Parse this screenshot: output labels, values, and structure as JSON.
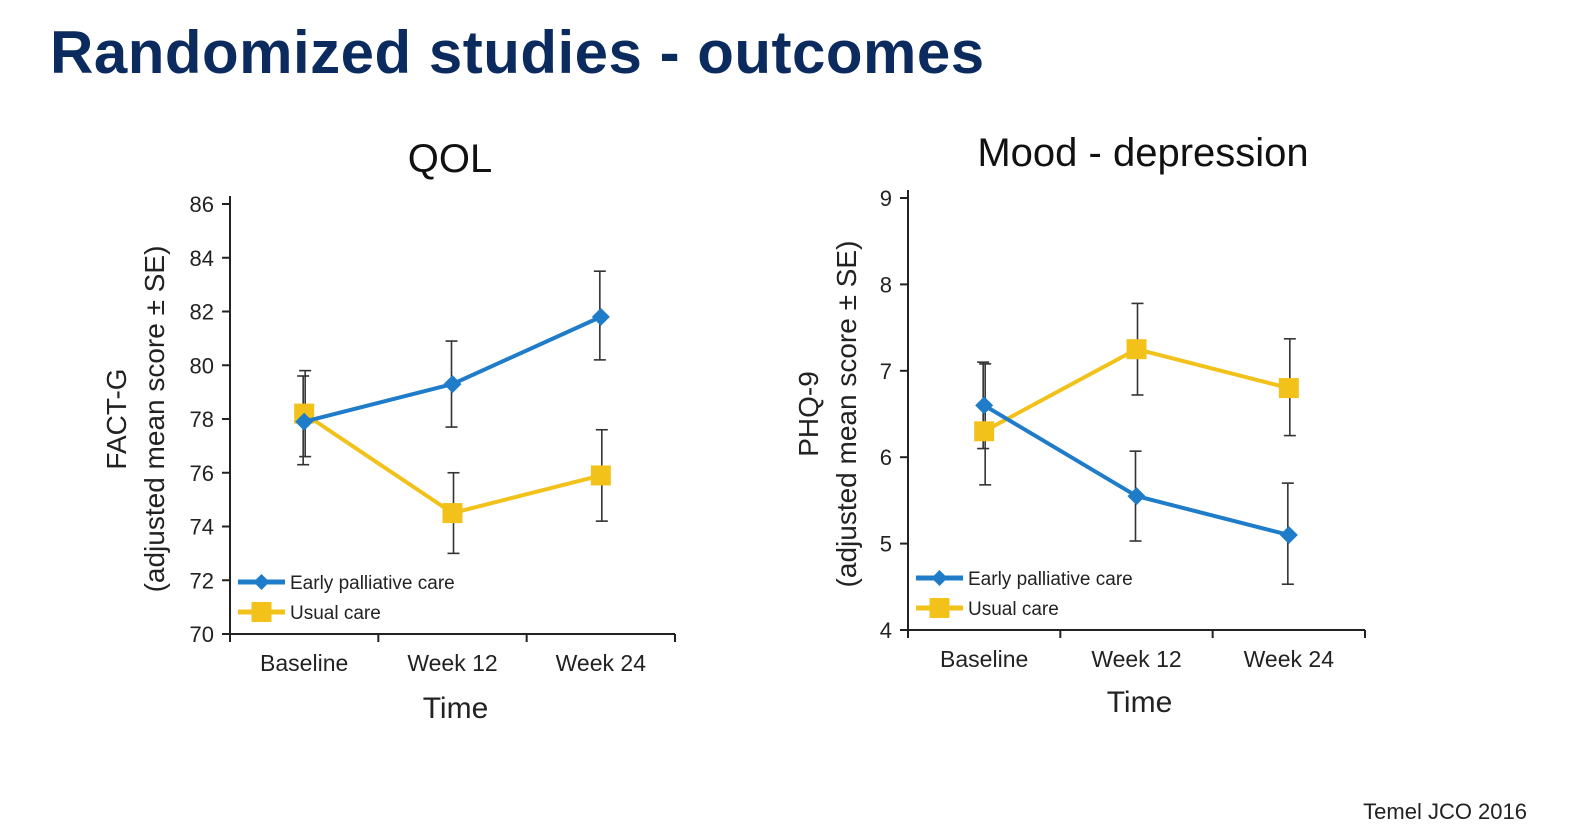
{
  "slide": {
    "title": "Randomized studies - outcomes",
    "citation": "Temel JCO 2016"
  },
  "colors": {
    "title": "#0b2a5e",
    "early": "#1f7cc9",
    "usual": "#f2c21b",
    "axis": "#222222"
  },
  "chart_data": [
    {
      "type": "line",
      "title": "QOL",
      "xlabel": "Time",
      "ylabel_line1": "FACT-G",
      "ylabel_line2": "(adjusted mean score ± SE)",
      "categories": [
        "Baseline",
        "Week 12",
        "Week 24"
      ],
      "ylim": [
        70,
        86
      ],
      "yticks": [
        70,
        72,
        74,
        76,
        78,
        80,
        82,
        84,
        86
      ],
      "legend_position": "bottom-left",
      "series": [
        {
          "name": "Early palliative care",
          "marker": "diamond",
          "values": [
            77.9,
            79.3,
            81.8
          ],
          "se_low": [
            76.3,
            77.7,
            80.2
          ],
          "se_high": [
            79.6,
            80.9,
            83.5
          ]
        },
        {
          "name": "Usual care",
          "marker": "square",
          "values": [
            78.2,
            74.5,
            75.9
          ],
          "se_low": [
            76.6,
            73.0,
            74.2
          ],
          "se_high": [
            79.8,
            76.0,
            77.6
          ]
        }
      ]
    },
    {
      "type": "line",
      "title": "Mood - depression",
      "xlabel": "Time",
      "ylabel_line1": "PHQ-9",
      "ylabel_line2": "(adjusted mean score ± SE)",
      "categories": [
        "Baseline",
        "Week 12",
        "Week 24"
      ],
      "ylim": [
        4,
        9
      ],
      "yticks": [
        4,
        5,
        6,
        7,
        8,
        9
      ],
      "legend_position": "bottom-left",
      "series": [
        {
          "name": "Early palliative care",
          "marker": "diamond",
          "values": [
            6.6,
            5.55,
            5.1
          ],
          "se_low": [
            6.1,
            5.03,
            4.53
          ],
          "se_high": [
            7.1,
            6.07,
            5.7
          ]
        },
        {
          "name": "Usual care",
          "marker": "square",
          "values": [
            6.3,
            7.25,
            6.8
          ],
          "se_low": [
            5.68,
            6.72,
            6.25
          ],
          "se_high": [
            7.08,
            7.78,
            7.37
          ]
        }
      ]
    }
  ]
}
